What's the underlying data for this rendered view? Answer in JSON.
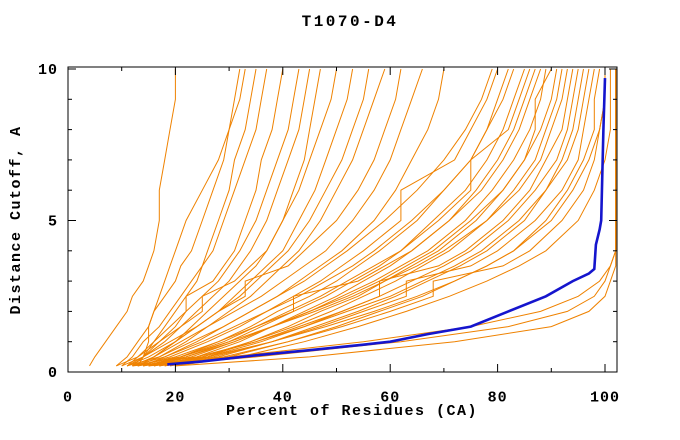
{
  "title": "T1070-D4",
  "chart_data": {
    "type": "line",
    "title": "T1070-D4",
    "xlabel": "Percent of Residues (CA)",
    "ylabel": "Distance Cutoff, A",
    "xlim": [
      0,
      102.2
    ],
    "ylim": [
      0,
      10.07
    ],
    "grid": false,
    "legend": "none",
    "x_major_ticks": [
      0,
      20,
      40,
      60,
      80,
      100
    ],
    "x_minor_step": 10,
    "y_major_ticks": [
      0,
      5,
      10
    ],
    "y_minor_step": 1,
    "colors": {
      "model_lines": "#ef8200",
      "highlight_line": "#1515cd",
      "axis": "#000000",
      "background": "#ffffff"
    },
    "cutoffs": [
      0.2,
      0.5,
      1,
      1.5,
      2,
      2.5,
      3,
      3.5,
      4,
      5,
      6,
      7,
      8,
      9,
      10
    ],
    "orange_series_percents": [
      [
        4,
        5,
        7,
        9,
        11,
        12,
        14,
        15,
        16,
        17,
        17,
        18,
        19,
        20,
        20
      ],
      [
        13,
        14,
        15,
        15,
        16,
        17,
        18,
        19,
        20,
        22,
        25,
        28,
        30,
        32,
        33
      ],
      [
        12,
        14,
        16,
        18,
        20,
        22,
        24,
        25,
        26,
        28,
        30,
        31,
        33,
        34,
        35
      ],
      [
        10,
        12,
        14,
        17,
        19,
        21,
        23,
        25,
        27,
        29,
        31,
        33,
        35,
        36,
        37
      ],
      [
        12,
        14,
        17,
        20,
        22,
        22,
        27,
        29,
        31,
        33,
        35,
        36,
        38,
        39,
        40
      ],
      [
        11,
        13,
        16,
        19,
        22,
        25,
        28,
        30,
        32,
        35,
        37,
        39,
        41,
        42,
        43
      ],
      [
        11,
        14,
        18,
        21,
        24,
        27,
        30,
        32,
        34,
        37,
        39,
        41,
        43,
        44,
        45
      ],
      [
        13,
        16,
        20,
        23,
        26,
        29,
        32,
        35,
        37,
        40,
        42,
        44,
        45,
        46,
        47
      ],
      [
        9,
        13,
        17,
        21,
        25,
        25,
        31,
        34,
        37,
        40,
        43,
        45,
        47,
        49,
        50
      ],
      [
        12,
        16,
        20,
        24,
        28,
        31,
        34,
        37,
        40,
        43,
        46,
        48,
        50,
        52,
        53
      ],
      [
        11,
        15,
        20,
        24,
        28,
        32,
        35,
        38,
        41,
        45,
        48,
        51,
        53,
        55,
        56
      ],
      [
        13,
        17,
        22,
        26,
        30,
        34,
        37,
        40,
        43,
        47,
        50,
        53,
        55,
        57,
        59
      ],
      [
        10,
        14,
        19,
        24,
        28,
        33,
        33,
        41,
        44,
        50,
        54,
        57,
        59,
        61,
        62
      ],
      [
        12,
        16,
        21,
        26,
        31,
        36,
        40,
        44,
        48,
        53,
        57,
        60,
        62,
        64,
        66
      ],
      [
        14,
        18,
        24,
        29,
        34,
        39,
        43,
        47,
        51,
        57,
        61,
        64,
        67,
        69,
        70
      ],
      [
        11,
        17,
        23,
        29,
        34,
        39,
        44,
        48,
        52,
        59,
        65,
        70,
        74,
        77,
        79
      ],
      [
        13,
        19,
        26,
        32,
        37,
        42,
        47,
        51,
        55,
        62,
        62,
        72,
        75,
        78,
        80
      ],
      [
        15,
        21,
        28,
        34,
        39,
        45,
        50,
        54,
        58,
        65,
        70,
        75,
        78,
        80,
        82
      ],
      [
        12,
        18,
        25,
        31,
        37,
        43,
        48,
        53,
        57,
        64,
        70,
        75,
        78,
        81,
        83
      ],
      [
        16,
        22,
        30,
        36,
        42,
        48,
        53,
        58,
        62,
        68,
        74,
        78,
        81,
        83,
        85
      ],
      [
        14,
        21,
        29,
        35,
        41,
        47,
        52,
        57,
        62,
        69,
        75,
        75,
        82,
        84,
        86
      ],
      [
        17,
        24,
        32,
        38,
        44,
        50,
        55,
        60,
        64,
        71,
        76,
        80,
        83,
        85,
        87
      ],
      [
        13,
        20,
        28,
        35,
        42,
        42,
        54,
        59,
        64,
        71,
        77,
        81,
        84,
        86,
        88
      ],
      [
        15,
        23,
        31,
        38,
        45,
        51,
        57,
        62,
        67,
        74,
        79,
        83,
        86,
        88,
        89
      ],
      [
        18,
        26,
        34,
        41,
        47,
        54,
        59,
        64,
        69,
        76,
        81,
        85,
        87,
        87,
        90
      ],
      [
        14,
        22,
        31,
        38,
        45,
        52,
        58,
        63,
        68,
        75,
        81,
        85,
        88,
        90,
        91
      ],
      [
        16,
        25,
        34,
        42,
        49,
        55,
        61,
        66,
        71,
        78,
        83,
        87,
        89,
        91,
        92
      ],
      [
        12,
        21,
        30,
        38,
        46,
        53,
        59,
        65,
        70,
        78,
        84,
        88,
        90,
        92,
        93
      ],
      [
        17,
        26,
        36,
        44,
        51,
        58,
        58,
        69,
        74,
        81,
        86,
        89,
        92,
        93,
        94
      ],
      [
        15,
        25,
        35,
        43,
        51,
        58,
        64,
        70,
        75,
        82,
        87,
        91,
        93,
        94,
        95
      ],
      [
        18,
        28,
        38,
        46,
        54,
        61,
        67,
        73,
        78,
        85,
        89,
        92,
        94,
        95,
        96
      ],
      [
        13,
        24,
        35,
        44,
        52,
        60,
        66,
        72,
        77,
        84,
        89,
        93,
        95,
        96,
        97
      ],
      [
        16,
        27,
        38,
        47,
        55,
        63,
        63,
        75,
        80,
        87,
        92,
        95,
        96,
        97,
        98
      ],
      [
        19,
        30,
        41,
        50,
        58,
        66,
        72,
        78,
        83,
        89,
        93,
        96,
        98,
        98,
        99
      ],
      [
        14,
        26,
        38,
        48,
        57,
        65,
        72,
        78,
        83,
        90,
        94,
        97,
        99,
        100,
        100
      ],
      [
        17,
        29,
        41,
        51,
        60,
        68,
        68,
        81,
        86,
        92,
        96,
        98,
        99,
        100,
        100
      ],
      [
        20,
        32,
        44,
        54,
        63,
        71,
        78,
        84,
        89,
        95,
        98,
        100,
        101,
        101,
        101
      ],
      [
        12,
        30,
        55,
        75,
        88,
        95,
        99,
        101,
        102,
        102,
        102,
        102,
        102,
        102,
        102
      ],
      [
        15,
        35,
        62,
        82,
        93,
        98,
        100,
        101,
        102,
        102,
        102,
        102,
        102,
        102,
        102
      ],
      [
        20,
        45,
        72,
        90,
        97,
        100,
        101,
        102,
        102,
        102,
        102,
        102,
        102,
        102,
        102
      ],
      [
        9,
        11,
        13,
        15,
        16,
        18,
        20,
        21,
        23,
        25,
        27,
        29,
        30,
        31,
        32
      ]
    ],
    "blue_series_points": [
      [
        18.5,
        0.25
      ],
      [
        25,
        0.35
      ],
      [
        35,
        0.55
      ],
      [
        45,
        0.72
      ],
      [
        55,
        0.9
      ],
      [
        60,
        1.0
      ],
      [
        67,
        1.25
      ],
      [
        75,
        1.5
      ],
      [
        82,
        2.0
      ],
      [
        89,
        2.5
      ],
      [
        94,
        3.0
      ],
      [
        97,
        3.25
      ],
      [
        98,
        3.4
      ],
      [
        98.3,
        4.2
      ],
      [
        99,
        4.7
      ],
      [
        99.3,
        5.0
      ],
      [
        99.5,
        6.5
      ],
      [
        99.7,
        8.0
      ],
      [
        100,
        9.7
      ]
    ]
  }
}
